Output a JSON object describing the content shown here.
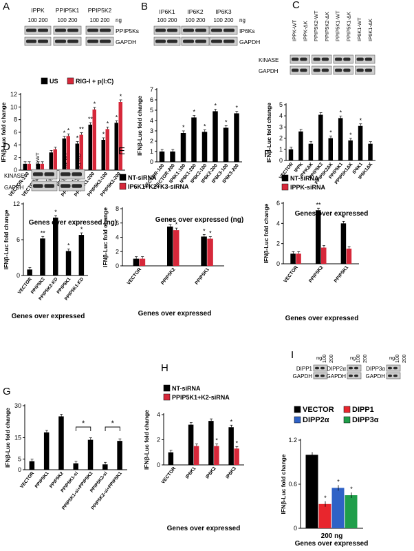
{
  "panels": [
    {
      "letter": "A",
      "blot_groups": [
        {
          "title": "IPPK",
          "doses": "100 200"
        },
        {
          "title": "PPIP5K1",
          "doses": "100 200"
        },
        {
          "title": "PPIP5K2",
          "doses": "100 200"
        }
      ],
      "unit": "ng",
      "blot_labels": [
        "PPIP5Ks",
        "GAPDH"
      ],
      "legend": [
        "US",
        "RIG-I + p(I:C)"
      ],
      "chart_data": {
        "type": "bar",
        "ylabel": "IFNβ-Luc fold change",
        "xlabel": "Genes over expressed (ng)",
        "ylim": [
          0,
          12
        ],
        "yticks": [
          0,
          2,
          4,
          6,
          8,
          10,
          12
        ],
        "categories": [
          "VECTOR-100",
          "VECTOR-200",
          "IPPK-100",
          "IPPK-200",
          "PPIP5K1-100",
          "PPIP5K1-200",
          "PPIP5K2-100",
          "PPIP5K2-200"
        ],
        "series": [
          {
            "name": "US",
            "values": [
              1,
              1,
              2.8,
              5.0,
              4.2,
              7.2,
              4.8,
              7.5
            ],
            "color": "#000000"
          },
          {
            "name": "RIG-I + p(I:C)",
            "values": [
              1,
              1,
              3.3,
              5.4,
              5.6,
              9.6,
              6.5,
              10.8
            ],
            "color": "#d6283a"
          }
        ],
        "annotations": [
          "*",
          "*",
          "*",
          "**",
          "**",
          "*",
          "*",
          "*",
          "*",
          "*",
          "*",
          "**"
        ]
      }
    },
    {
      "letter": "B",
      "blot_groups": [
        {
          "title": "IP6K1",
          "doses": "100 200"
        },
        {
          "title": "IP6K2",
          "doses": "100 200"
        },
        {
          "title": "IP6K3",
          "doses": "100 200"
        }
      ],
      "unit": "ng",
      "blot_labels": [
        "IP6Ks",
        "GAPDH"
      ],
      "chart_data": {
        "type": "bar",
        "ylabel": "IFNβ-Luc fold change",
        "xlabel": "Genes over expressed (ng)",
        "ylim": [
          0,
          7
        ],
        "yticks": [
          0,
          1,
          2,
          3,
          4,
          5,
          6,
          7
        ],
        "categories": [
          "VECTOR-100",
          "VECTOR-200",
          "IP6K1-100",
          "IP6K1-200",
          "IP6K2-100",
          "IP6K2-200",
          "IP6K3-100",
          "IP6K3-200"
        ],
        "series": [
          {
            "values": [
              1,
              1,
              2.8,
              4.3,
              2.9,
              4.9,
              3.3,
              4.7
            ],
            "color": "#000000"
          }
        ],
        "annotations": [
          "*",
          "*",
          "*",
          "*",
          "*",
          "*"
        ]
      }
    },
    {
      "letter": "C",
      "blot_groups": [
        {
          "title": "IPPK-WT"
        },
        {
          "title": "IPPK-ΔK"
        },
        {
          "title": "PPIP5K2-WT"
        },
        {
          "title": "PPIP5K2-ΔK"
        },
        {
          "title": "PPIP5K1-WT"
        },
        {
          "title": "PPIP5K1-ΔK"
        },
        {
          "title": "IP6K1-WT"
        },
        {
          "title": "IP6K1-ΔK"
        }
      ],
      "blot_labels": [
        "KINASE",
        "GAPDH"
      ],
      "chart_data": {
        "type": "bar",
        "ylabel": "IFNβ-Luc fold change",
        "xlabel": "Genes over expressed",
        "ylim": [
          0,
          5
        ],
        "yticks": [
          0,
          1,
          2,
          3,
          4,
          5
        ],
        "categories": [
          "VECTOR",
          "IPPK",
          "IPPKΔK",
          "PPIP5K2",
          "PPIP5K2ΔK",
          "PPIP5K1",
          "PPIP5K1ΔK",
          "IP6K1",
          "IP6K1ΔK"
        ],
        "series": [
          {
            "values": [
              1,
              2.6,
              1.5,
              4.1,
              2.0,
              3.8,
              1.8,
              3.1,
              1.5
            ],
            "color": "#000000"
          }
        ],
        "annotations": [
          "*",
          "*",
          "*",
          "*"
        ]
      }
    },
    {
      "letter": "D",
      "blot_groups": [
        {
          "title": "PPIP5K2-WT"
        },
        {
          "title": "PPIP5K2-KD"
        },
        {
          "title": "PPIP5K1-WT"
        },
        {
          "title": "PPIP5K1-KD"
        }
      ],
      "blot_labels": [
        "KINASE",
        "GAPDH"
      ],
      "chart_data": {
        "type": "bar",
        "ylabel": "IFNβ-Luc fold change",
        "xlabel": "Genes over expressed",
        "ylim": [
          0,
          12
        ],
        "yticks": [
          0,
          6,
          12
        ],
        "categories": [
          "VECTOR",
          "PPIP5K2",
          "PPIP5K2-KD",
          "PPIP5K1",
          "PPIP5K1-KD"
        ],
        "series": [
          {
            "values": [
              1,
              6.2,
              9.7,
              4.1,
              6.8
            ],
            "color": "#000000"
          }
        ],
        "annotations": [
          "**",
          "*",
          "*",
          "*"
        ]
      }
    },
    {
      "letter": "E",
      "legend": [
        "NT-siRNA",
        "IP6K1+K2+K3-siRNA"
      ],
      "chart_data": {
        "type": "bar",
        "ylabel": "IFNβ-Luc fold change",
        "xlabel": "Genes over expressed",
        "ylim": [
          0,
          8
        ],
        "yticks": [
          0,
          2,
          4,
          6,
          8
        ],
        "categories": [
          "VECTOR",
          "PPIP5K2",
          "PPIP5K1"
        ],
        "series": [
          {
            "name": "NT-siRNA",
            "values": [
              1,
              5.5,
              4.1
            ],
            "color": "#000000"
          },
          {
            "name": "IP6K1+K2+K3-siRNA",
            "values": [
              1,
              5.0,
              3.8
            ],
            "color": "#d6283a"
          }
        ],
        "annotations": [
          "*",
          "*",
          "*",
          "*"
        ]
      }
    },
    {
      "letter": "F",
      "legend": [
        "NT-siRNA",
        "IPPK-siRNA"
      ],
      "chart_data": {
        "type": "bar",
        "ylabel": "IFNβ-Luc fold change",
        "xlabel": "Genes over expressed",
        "ylim": [
          0,
          6
        ],
        "yticks": [
          0,
          2,
          4,
          6
        ],
        "categories": [
          "VECTOR",
          "PPIP5K2",
          "PPIP5K1"
        ],
        "series": [
          {
            "name": "NT-siRNA",
            "values": [
              1,
              5.3,
              4.0
            ],
            "color": "#000000"
          },
          {
            "name": "IPPK-siRNA",
            "values": [
              1,
              1.6,
              1.5
            ],
            "color": "#d6283a"
          }
        ],
        "annotations": [
          "**",
          "*"
        ]
      }
    },
    {
      "letter": "G",
      "chart_data": {
        "type": "bar",
        "ylabel": "IFNβ-Luc fold change",
        "xlabel": "",
        "ylim": [
          0,
          30
        ],
        "yticks": [
          0,
          5,
          15,
          30
        ],
        "categories": [
          "VECTOR",
          "PPIP5K1",
          "PPIP5K2",
          "PPIP5K1-si",
          "PPIP5K1-si+PPIP5K2",
          "PPIP5K2-si",
          "PPIP5K2-si+PPIP5K1"
        ],
        "series": [
          {
            "values": [
              4,
              17.5,
              25,
              3,
              14,
              2.5,
              13.5
            ],
            "color": "#000000"
          }
        ],
        "annotations": [
          "*",
          "*"
        ]
      }
    },
    {
      "letter": "H",
      "legend": [
        "NT-siRNA",
        "PPIP5K1+K2-siRNA"
      ],
      "chart_data": {
        "type": "bar",
        "ylabel": "IFNβ-Luc fold change",
        "xlabel": "Genes over expressed",
        "ylim": [
          0,
          4
        ],
        "yticks": [
          0,
          2,
          4
        ],
        "categories": [
          "VECTOR",
          "IP6K1",
          "IP6K2",
          "IP6K3"
        ],
        "series": [
          {
            "name": "NT-siRNA",
            "values": [
              1,
              3.2,
              3.5,
              3.0
            ],
            "color": "#000000"
          },
          {
            "name": "PPIP5K1+K2-siRNA",
            "values": [
              null,
              1.5,
              1.5,
              1.3
            ],
            "color": "#d6283a"
          }
        ],
        "annotations": [
          "*",
          "*",
          "*"
        ]
      }
    },
    {
      "letter": "I",
      "blot_groups": [
        {
          "title": "DIPP1",
          "doses": "100 200"
        },
        {
          "title": "DIPP2α",
          "doses": "100 200"
        },
        {
          "title": "DIPP3α",
          "doses": "100 200"
        }
      ],
      "unit": "ng",
      "blot_labels": [
        "GAPDH"
      ],
      "legend": [
        "VECTOR",
        "DIPP1",
        "DIPP2α",
        "DIPP3α"
      ],
      "chart_data": {
        "type": "bar",
        "ylabel": "IFNβ-Luc fold change",
        "xlabel": "Genes over expressed",
        "category_label": "200 ng",
        "ylim": [
          0,
          1.2
        ],
        "yticks": [
          0,
          0.6,
          1.2
        ],
        "series": [
          {
            "name": "VECTOR",
            "values": [
              1.0
            ],
            "color": "#000000"
          },
          {
            "name": "DIPP1",
            "values": [
              0.33
            ],
            "color": "#e8262d"
          },
          {
            "name": "DIPP2α",
            "values": [
              0.55
            ],
            "color": "#2f62c6"
          },
          {
            "name": "DIPP3α",
            "values": [
              0.45
            ],
            "color": "#1f9e4a"
          }
        ],
        "annotations": [
          "*",
          "*",
          "*"
        ]
      }
    }
  ]
}
